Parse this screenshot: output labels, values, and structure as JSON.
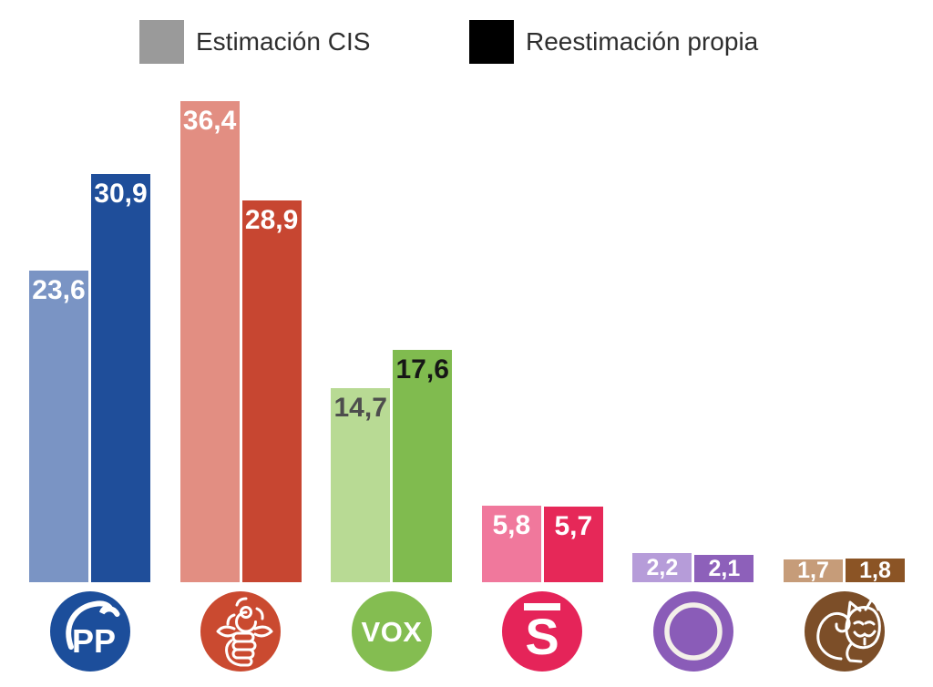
{
  "legend": {
    "items": [
      {
        "label": "Estimación CIS",
        "color": "#9a9a9a"
      },
      {
        "label": "Reestimación propia",
        "color": "#000000"
      }
    ]
  },
  "chart_data": {
    "type": "bar",
    "title": "",
    "xlabel": "",
    "ylabel": "",
    "ylim": [
      0,
      40
    ],
    "grid": false,
    "legend_position": "top",
    "value_label_format": "decimal-comma",
    "categories": [
      "PP",
      "PSOE",
      "VOX",
      "Sumar",
      "Podemos",
      "SALF"
    ],
    "series": [
      {
        "name": "Estimación CIS",
        "values": [
          23.6,
          36.4,
          14.7,
          5.8,
          2.2,
          1.7
        ]
      },
      {
        "name": "Reestimación propia",
        "values": [
          30.9,
          28.9,
          17.6,
          5.7,
          2.1,
          1.8
        ]
      }
    ],
    "parties": [
      {
        "id": "pp",
        "name": "PP",
        "cis": 23.6,
        "own": 30.9,
        "cis_color": "#7a94c4",
        "own_color": "#1f4e9a",
        "cis_label_color": "#ffffff",
        "own_label_color": "#ffffff",
        "logo_color": "#1c4e9b",
        "logo_icon": "pp-gull-heart-icon",
        "logo_text": "PP"
      },
      {
        "id": "psoe",
        "name": "PSOE",
        "cis": 36.4,
        "own": 28.9,
        "cis_color": "#e28e82",
        "own_color": "#c74631",
        "cis_label_color": "#ffffff",
        "own_label_color": "#ffffff",
        "logo_color": "#ca4a30",
        "logo_icon": "psoe-fist-and-rose-icon",
        "logo_text": ""
      },
      {
        "id": "vox",
        "name": "VOX",
        "cis": 14.7,
        "own": 17.6,
        "cis_color": "#b8da94",
        "own_color": "#80bb4f",
        "cis_label_color": "#4d4d4d",
        "own_label_color": "#161616",
        "logo_color": "#84bd51",
        "logo_icon": "vox-wordmark-icon",
        "logo_text": "VOX"
      },
      {
        "id": "sumar",
        "name": "Sumar",
        "cis": 5.8,
        "own": 5.7,
        "cis_color": "#f0789c",
        "own_color": "#e62858",
        "cis_label_color": "#ffffff",
        "own_label_color": "#ffffff",
        "logo_color": "#e52459",
        "logo_icon": "sumar-s-macron-icon",
        "logo_text": "S"
      },
      {
        "id": "podemos",
        "name": "Podemos",
        "cis": 2.2,
        "own": 2.1,
        "cis_color": "#b69cd9",
        "own_color": "#8d60ba",
        "cis_label_color": "#ffffff",
        "own_label_color": "#ffffff",
        "logo_color": "#8a5cb8",
        "logo_icon": "podemos-circle-ring-icon",
        "logo_text": ""
      },
      {
        "id": "salf",
        "name": "SALF",
        "cis": 1.7,
        "own": 1.8,
        "cis_color": "#c69c79",
        "own_color": "#8b5425",
        "cis_label_color": "#ffffff",
        "own_label_color": "#ffffff",
        "logo_color": "#7c4e28",
        "logo_icon": "salf-masked-squirrel-icon",
        "logo_text": ""
      }
    ]
  }
}
